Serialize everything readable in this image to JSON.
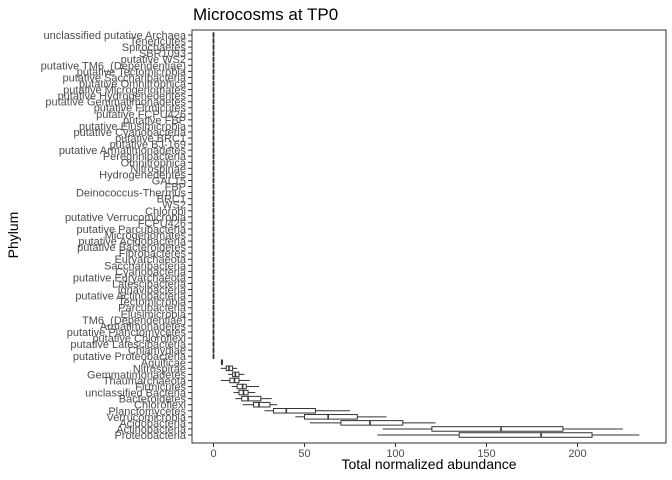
{
  "chart_data": {
    "type": "boxplot",
    "title": "Microcosms at TP0",
    "xlabel": "Total normalized abundance",
    "ylabel": "Phylum",
    "xlim": [
      -10,
      240
    ],
    "xticks": [
      0,
      50,
      100,
      150,
      200
    ],
    "grid": false,
    "categories": [
      "unclassified putative Archaea",
      "Tenericutes",
      "Spirochaetes",
      "SBR1093",
      "putative WS2",
      "putative TM6_(Dependentiae)",
      "putative Tectomicrobia",
      "putative Saccharibacteria",
      "putative Omnitrophica",
      "putative Microgenomates",
      "putative Hydrogenedentes",
      "putative Gemmatimonadetes",
      "putative Firmicutes",
      "putative FCPU426",
      "putative FBP",
      "putative Elusimicrobia",
      "putative Cyanobacteria",
      "putative BRC1",
      "putative BJ-169",
      "putative Armatimonadetes",
      "Peregrinibacteria",
      "Omnitrophica",
      "Nitrospinae",
      "Hydrogenedentes",
      "GAL15",
      "FBP",
      "Deinococcus-Thermus",
      "BRC1",
      "WS2",
      "Chlorobi",
      "putative Verrucomicrobia",
      "FCPU426",
      "putative Parcubacteria",
      "Microgenomates",
      "putative Acidobacteria",
      "putative Bacteroidetes",
      "Fibrobacteres",
      "Euryarchaeota",
      "Saccharibacteria",
      "Cyanobacteria",
      "putative Euryarchaeota",
      "Latescibacteria",
      "Ignavibacteria",
      "putative Actinobacteria",
      "Tectomicrobia",
      "Parcubacteria",
      "Elusimicrobia",
      "TM6_(Dependentiae)",
      "Armatimonadetes",
      "putative Planctomycetes",
      "putative Chloroflexi",
      "putative Latescibacteria",
      "Chlamydiae",
      "putative Proteobacteria",
      "Aquificae",
      "Nitrospirae",
      "Gemmatimonadetes",
      "Thaumarchaeota",
      "Firmicutes",
      "unclassified Bacteria",
      "Bacteroidetes",
      "Chloroflexi",
      "Planctomycetes",
      "Verrucomicrobia",
      "Acidobacteria",
      "Actinobacteria",
      "Proteobacteria"
    ],
    "boxes": [
      {
        "min": 0,
        "q1": 0,
        "median": 0,
        "q3": 0,
        "max": 0
      },
      {
        "min": 0,
        "q1": 0,
        "median": 0,
        "q3": 0,
        "max": 0
      },
      {
        "min": 0,
        "q1": 0,
        "median": 0,
        "q3": 0,
        "max": 0
      },
      {
        "min": 0,
        "q1": 0,
        "median": 0,
        "q3": 0,
        "max": 0
      },
      {
        "min": 0,
        "q1": 0,
        "median": 0,
        "q3": 0,
        "max": 0
      },
      {
        "min": 0,
        "q1": 0,
        "median": 0,
        "q3": 0,
        "max": 0
      },
      {
        "min": 0,
        "q1": 0,
        "median": 0,
        "q3": 0,
        "max": 0
      },
      {
        "min": 0,
        "q1": 0,
        "median": 0,
        "q3": 0,
        "max": 0
      },
      {
        "min": 0,
        "q1": 0,
        "median": 0,
        "q3": 0,
        "max": 0
      },
      {
        "min": 0,
        "q1": 0,
        "median": 0,
        "q3": 0,
        "max": 0
      },
      {
        "min": 0,
        "q1": 0,
        "median": 0,
        "q3": 0,
        "max": 0
      },
      {
        "min": 0,
        "q1": 0,
        "median": 0,
        "q3": 0,
        "max": 0
      },
      {
        "min": 0,
        "q1": 0,
        "median": 0,
        "q3": 0,
        "max": 0
      },
      {
        "min": 0,
        "q1": 0,
        "median": 0,
        "q3": 0,
        "max": 0
      },
      {
        "min": 0,
        "q1": 0,
        "median": 0,
        "q3": 0,
        "max": 0
      },
      {
        "min": 0,
        "q1": 0,
        "median": 0,
        "q3": 0,
        "max": 0
      },
      {
        "min": 0,
        "q1": 0,
        "median": 0,
        "q3": 0,
        "max": 0
      },
      {
        "min": 0,
        "q1": 0,
        "median": 0,
        "q3": 0,
        "max": 0
      },
      {
        "min": 0,
        "q1": 0,
        "median": 0,
        "q3": 0,
        "max": 0
      },
      {
        "min": 0,
        "q1": 0,
        "median": 0,
        "q3": 0,
        "max": 0
      },
      {
        "min": 0,
        "q1": 0,
        "median": 0,
        "q3": 0,
        "max": 0
      },
      {
        "min": 0,
        "q1": 0,
        "median": 0,
        "q3": 0,
        "max": 0
      },
      {
        "min": 0,
        "q1": 0,
        "median": 0,
        "q3": 0,
        "max": 0
      },
      {
        "min": 0,
        "q1": 0,
        "median": 0,
        "q3": 0,
        "max": 0
      },
      {
        "min": 0,
        "q1": 0,
        "median": 0,
        "q3": 0,
        "max": 0
      },
      {
        "min": 0,
        "q1": 0,
        "median": 0,
        "q3": 0,
        "max": 0
      },
      {
        "min": 0,
        "q1": 0,
        "median": 0,
        "q3": 0,
        "max": 0
      },
      {
        "min": 0,
        "q1": 0,
        "median": 0,
        "q3": 0,
        "max": 0
      },
      {
        "min": 0,
        "q1": 0,
        "median": 0,
        "q3": 0,
        "max": 0
      },
      {
        "min": 0,
        "q1": 0,
        "median": 0,
        "q3": 0,
        "max": 0
      },
      {
        "min": 0,
        "q1": 0,
        "median": 0,
        "q3": 0,
        "max": 0
      },
      {
        "min": 0,
        "q1": 0,
        "median": 0,
        "q3": 0,
        "max": 0
      },
      {
        "min": 0,
        "q1": 0,
        "median": 0,
        "q3": 0,
        "max": 0
      },
      {
        "min": 0,
        "q1": 0,
        "median": 0,
        "q3": 0,
        "max": 0
      },
      {
        "min": 0,
        "q1": 0,
        "median": 0,
        "q3": 0,
        "max": 0
      },
      {
        "min": 0,
        "q1": 0,
        "median": 0,
        "q3": 0,
        "max": 0
      },
      {
        "min": 0,
        "q1": 0,
        "median": 0,
        "q3": 0,
        "max": 0
      },
      {
        "min": 0,
        "q1": 0,
        "median": 0,
        "q3": 0,
        "max": 0
      },
      {
        "min": 0,
        "q1": 0,
        "median": 0,
        "q3": 0,
        "max": 0
      },
      {
        "min": 0,
        "q1": 0,
        "median": 0,
        "q3": 0,
        "max": 0
      },
      {
        "min": 0,
        "q1": 0,
        "median": 0,
        "q3": 0,
        "max": 0
      },
      {
        "min": 0,
        "q1": 0,
        "median": 0,
        "q3": 0,
        "max": 0
      },
      {
        "min": 0,
        "q1": 0,
        "median": 0,
        "q3": 0,
        "max": 0
      },
      {
        "min": 0,
        "q1": 0,
        "median": 0,
        "q3": 0,
        "max": 0
      },
      {
        "min": 0,
        "q1": 0,
        "median": 0,
        "q3": 0,
        "max": 0
      },
      {
        "min": 0,
        "q1": 0,
        "median": 0,
        "q3": 0,
        "max": 0
      },
      {
        "min": 0,
        "q1": 0,
        "median": 0,
        "q3": 0,
        "max": 0
      },
      {
        "min": 0,
        "q1": 0,
        "median": 0,
        "q3": 0,
        "max": 0
      },
      {
        "min": 0,
        "q1": 0,
        "median": 0,
        "q3": 0,
        "max": 0
      },
      {
        "min": 0,
        "q1": 0,
        "median": 0,
        "q3": 0,
        "max": 0
      },
      {
        "min": 0,
        "q1": 0,
        "median": 0,
        "q3": 0,
        "max": 0
      },
      {
        "min": 0,
        "q1": 0,
        "median": 0,
        "q3": 0,
        "max": 0
      },
      {
        "min": 0,
        "q1": 0,
        "median": 0,
        "q3": 0,
        "max": 0
      },
      {
        "min": 0,
        "q1": 0,
        "median": 0,
        "q3": 0,
        "max": 0
      },
      {
        "min": 4,
        "q1": 4.4,
        "median": 4.6,
        "q3": 4.9,
        "max": 5.3
      },
      {
        "min": 4,
        "q1": 7,
        "median": 8.5,
        "q3": 10.5,
        "max": 13
      },
      {
        "min": 8,
        "q1": 10.5,
        "median": 12,
        "q3": 14,
        "max": 17
      },
      {
        "min": 4,
        "q1": 9,
        "median": 11.5,
        "q3": 14,
        "max": 20
      },
      {
        "min": 10,
        "q1": 13,
        "median": 16,
        "q3": 18,
        "max": 25
      },
      {
        "min": 11,
        "q1": 14,
        "median": 16.5,
        "q3": 19,
        "max": 23
      },
      {
        "min": 12,
        "q1": 15.5,
        "median": 19,
        "q3": 26,
        "max": 32
      },
      {
        "min": 16,
        "q1": 22,
        "median": 25,
        "q3": 31,
        "max": 35
      },
      {
        "min": 28,
        "q1": 33,
        "median": 40,
        "q3": 56,
        "max": 75
      },
      {
        "min": 45,
        "q1": 50,
        "median": 63,
        "q3": 79,
        "max": 95
      },
      {
        "min": 53,
        "q1": 70,
        "median": 86,
        "q3": 104,
        "max": 122
      },
      {
        "min": 93,
        "q1": 120,
        "median": 158,
        "q3": 192,
        "max": 225
      },
      {
        "min": 90,
        "q1": 135,
        "median": 180,
        "q3": 208,
        "max": 234
      }
    ]
  }
}
